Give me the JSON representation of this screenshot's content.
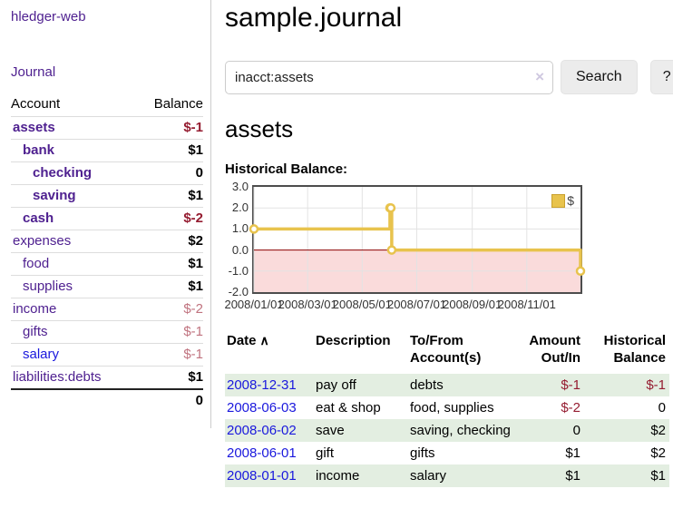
{
  "colors": {
    "link_purple": "#4f2190",
    "link_blue": "#1a18dd",
    "negative_strong": "#951d31",
    "negative_weak": "#c0737f",
    "row_stripe_green": "#e3eee1",
    "chart_line_gold": "#e8c34d",
    "chart_negative_fill": "#fadbdb",
    "chart_zero_line": "#8b0000",
    "chart_grid": "#e3e3e3"
  },
  "sidebar": {
    "brand": "hledger-web",
    "nav_journal": "Journal",
    "header": {
      "account": "Account",
      "balance": "Balance"
    },
    "accounts": [
      {
        "name": "assets",
        "indent": 0,
        "bold": true,
        "balance": "$-1",
        "balance_class": "neg-strong"
      },
      {
        "name": "bank",
        "indent": 1,
        "bold": true,
        "balance": "$1",
        "balance_class": ""
      },
      {
        "name": "checking",
        "indent": 2,
        "bold": true,
        "balance": "0",
        "balance_class": ""
      },
      {
        "name": "saving",
        "indent": 2,
        "bold": true,
        "balance": "$1",
        "balance_class": ""
      },
      {
        "name": "cash",
        "indent": 1,
        "bold": true,
        "balance": "$-2",
        "balance_class": "neg-strong"
      },
      {
        "name": "expenses",
        "indent": 0,
        "bold": false,
        "balance": "$2",
        "balance_class": ""
      },
      {
        "name": "food",
        "indent": 1,
        "bold": false,
        "balance": "$1",
        "balance_class": ""
      },
      {
        "name": "supplies",
        "indent": 1,
        "bold": false,
        "balance": "$1",
        "balance_class": ""
      },
      {
        "name": "income",
        "indent": 0,
        "bold": false,
        "balance": "$-2",
        "balance_class": "neg-weak"
      },
      {
        "name": "gifts",
        "indent": 1,
        "bold": false,
        "balance": "$-1",
        "balance_class": "neg-weak"
      },
      {
        "name": "salary",
        "indent": 1,
        "bold": false,
        "balance": "$-1",
        "balance_class": "neg-weak",
        "unvisited": true
      },
      {
        "name": "liabilities:debts",
        "indent": 0,
        "bold": false,
        "balance": "$1",
        "balance_class": ""
      }
    ],
    "total": "0"
  },
  "main": {
    "title": "sample.journal",
    "search": {
      "value": "inacct:assets",
      "clear_icon": "×",
      "button_label": "Search",
      "help_label": "?"
    },
    "account_heading": "assets",
    "chart_label": "Historical Balance:"
  },
  "chart_data": {
    "type": "line",
    "style": "steps",
    "title": "Historical Balance:",
    "legend": {
      "position": "top-right",
      "label": "$"
    },
    "x_range": [
      "2008-01-01",
      "2008-12-31"
    ],
    "ylim": [
      -2,
      3
    ],
    "grid": true,
    "series": [
      {
        "name": "$",
        "points": [
          [
            "2008-01-01",
            1
          ],
          [
            "2008-06-01",
            2
          ],
          [
            "2008-06-02",
            2
          ],
          [
            "2008-06-03",
            0
          ],
          [
            "2008-12-31",
            -1
          ]
        ]
      }
    ],
    "y_ticks": [
      {
        "v": 3,
        "label": "3.0"
      },
      {
        "v": 2,
        "label": "2.0"
      },
      {
        "v": 1,
        "label": "1.0"
      },
      {
        "v": 0,
        "label": "0.0"
      },
      {
        "v": -1,
        "label": "-1.0"
      },
      {
        "v": -2,
        "label": "-2.0"
      }
    ],
    "x_ticks": [
      {
        "d": "2008-01-01",
        "label": "2008/01/01"
      },
      {
        "d": "2008-03-01",
        "label": "2008/03/01"
      },
      {
        "d": "2008-05-01",
        "label": "2008/05/01"
      },
      {
        "d": "2008-07-01",
        "label": "2008/07/01"
      },
      {
        "d": "2008-09-01",
        "label": "2008/09/01"
      },
      {
        "d": "2008-11-01",
        "label": "2008/11/01"
      }
    ]
  },
  "register_table": {
    "headers": {
      "date": "Date",
      "sort_icon": "∧",
      "description": "Description",
      "accounts": "To/From Account(s)",
      "amount": "Amount Out/In",
      "balance": "Historical Balance"
    },
    "rows": [
      {
        "date": "2008-12-31",
        "description": "pay off",
        "accounts": "debts",
        "amount": "$-1",
        "amount_negative": true,
        "balance": "$-1",
        "balance_negative": true
      },
      {
        "date": "2008-06-03",
        "description": "eat & shop",
        "accounts": "food, supplies",
        "amount": "$-2",
        "amount_negative": true,
        "balance": "0",
        "balance_negative": false
      },
      {
        "date": "2008-06-02",
        "description": "save",
        "accounts": "saving, checking",
        "amount": "0",
        "amount_negative": false,
        "balance": "$2",
        "balance_negative": false
      },
      {
        "date": "2008-06-01",
        "description": "gift",
        "accounts": "gifts",
        "amount": "$1",
        "amount_negative": false,
        "balance": "$2",
        "balance_negative": false
      },
      {
        "date": "2008-01-01",
        "description": "income",
        "accounts": "salary",
        "amount": "$1",
        "amount_negative": false,
        "balance": "$1",
        "balance_negative": false
      }
    ]
  }
}
